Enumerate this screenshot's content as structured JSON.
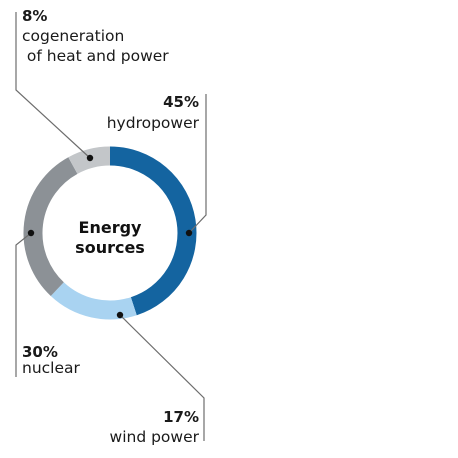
{
  "chart_data": {
    "type": "pie",
    "variant": "donut",
    "title": "Energy sources",
    "center_label_lines": [
      "Energy",
      "sources"
    ],
    "unit": "%",
    "categories": [
      "hydropower",
      "wind power",
      "nuclear",
      "cogeneration of heat and power"
    ],
    "values": [
      45,
      17,
      30,
      8
    ],
    "slices": [
      {
        "name": "hydropower",
        "value": 45,
        "label": "45%",
        "name_lines": [
          "hydropower"
        ],
        "color": "#1464a0"
      },
      {
        "name": "wind power",
        "value": 17,
        "label": "17%",
        "name_lines": [
          "wind power"
        ],
        "color": "#a9d3f1"
      },
      {
        "name": "nuclear",
        "value": 30,
        "label": "30%",
        "name_lines": [
          "nuclear"
        ],
        "color": "#8c9196"
      },
      {
        "name": "cogeneration of heat and power",
        "value": 8,
        "label": "8%",
        "name_lines": [
          "cogeneration",
          " of heat and power"
        ],
        "color": "#c3c6c9"
      }
    ],
    "start_angle": "top",
    "direction": "clockwise",
    "legend": "none",
    "leader_color": "#6d6d6d"
  }
}
